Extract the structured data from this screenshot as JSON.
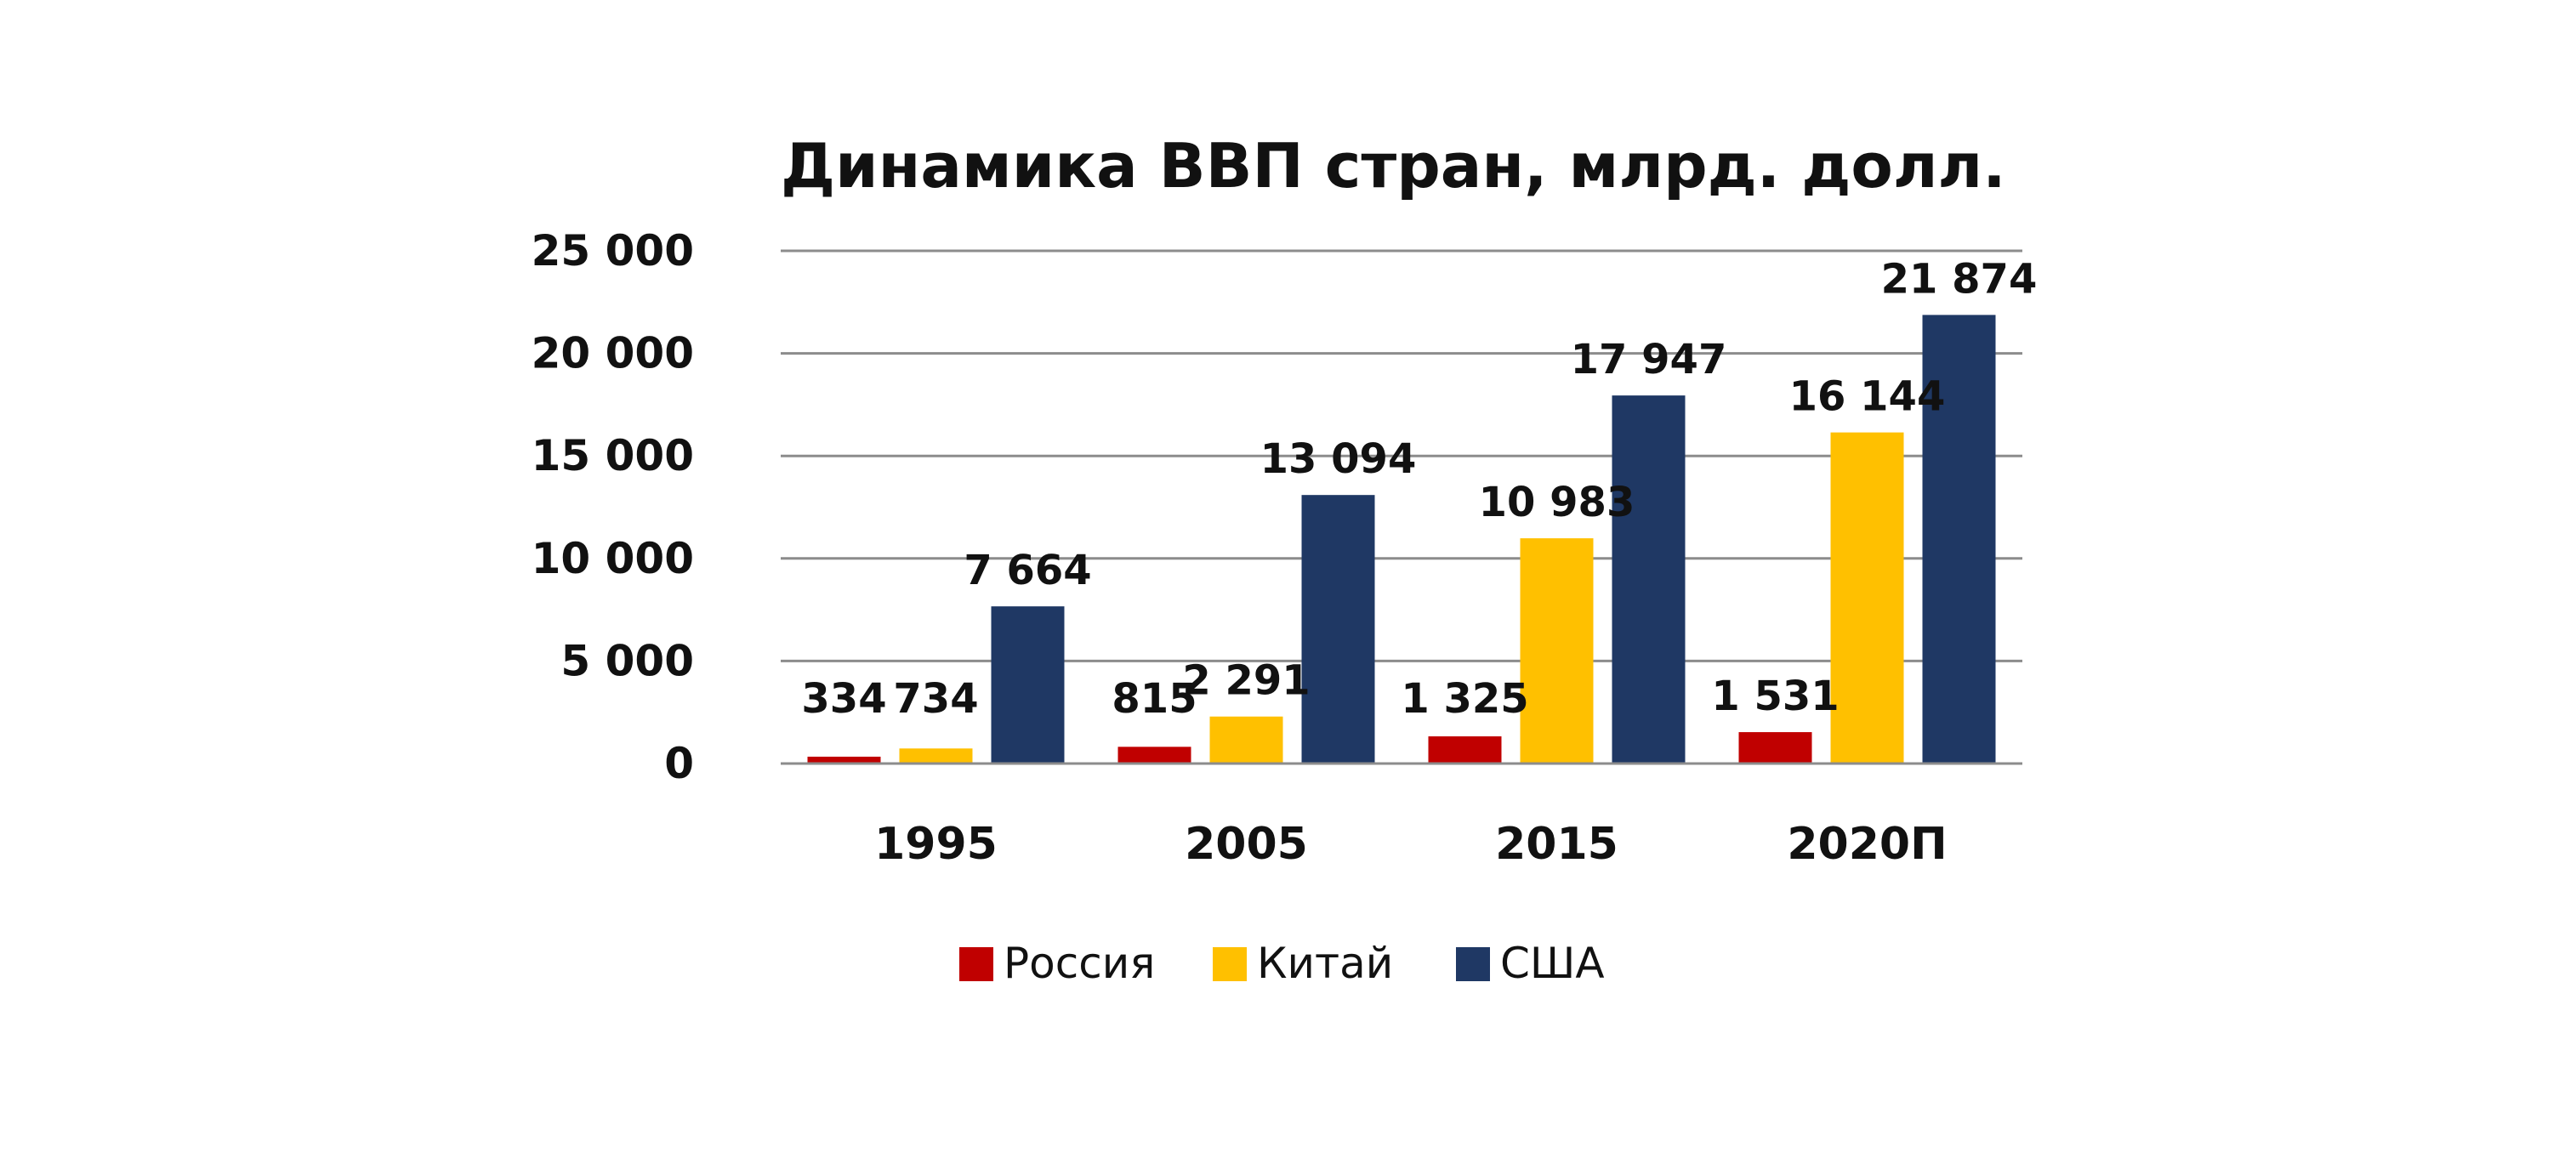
{
  "chart_data": {
    "type": "bar",
    "title": "Динамика ВВП стран, млрд. долл.",
    "xlabel": "",
    "ylabel": "",
    "categories": [
      "1995",
      "2005",
      "2015",
      "2020П"
    ],
    "series": [
      {
        "name": "Россия",
        "color": "#c00000",
        "values": [
          334,
          815,
          1325,
          1531
        ],
        "labels": [
          "334",
          "815",
          "1 325",
          "1 531"
        ]
      },
      {
        "name": "Китай",
        "color": "#ffc000",
        "values": [
          734,
          2291,
          10983,
          16144
        ],
        "labels": [
          "734",
          "2 291",
          "10 983",
          "16 144"
        ]
      },
      {
        "name": "США",
        "color": "#1f3864",
        "values": [
          7664,
          13094,
          17947,
          21874
        ],
        "labels": [
          "7 664",
          "13 094",
          "17 947",
          "21 874"
        ]
      }
    ],
    "ylim": [
      0,
      25000
    ],
    "yticks": [
      0,
      5000,
      10000,
      15000,
      20000,
      25000
    ],
    "ytick_labels": [
      "0",
      "5 000",
      "10 000",
      "15 000",
      "20 000",
      "25 000"
    ],
    "grid": true,
    "legend_position": "bottom-center"
  }
}
